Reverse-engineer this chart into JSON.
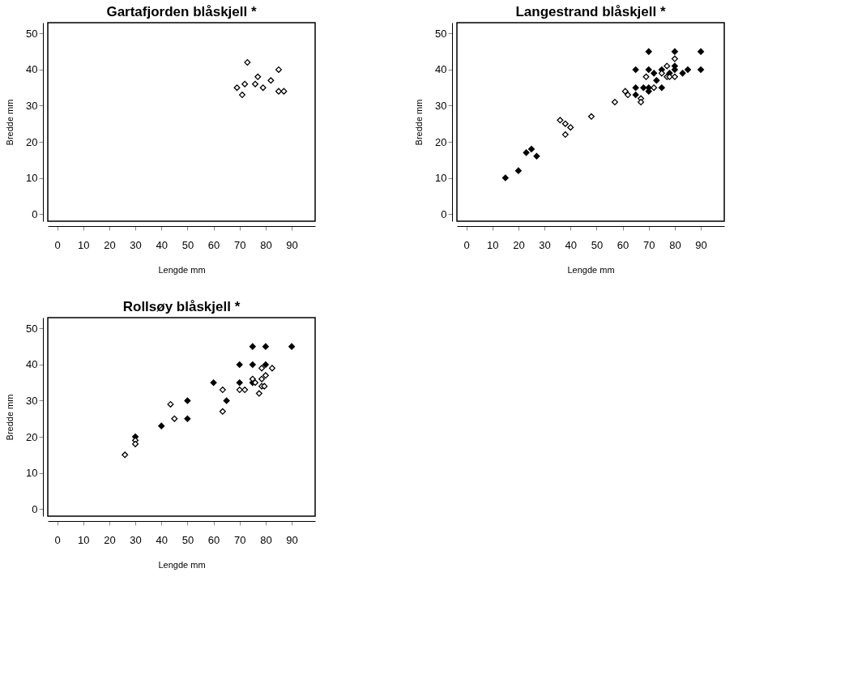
{
  "chart_data": [
    {
      "type": "scatter",
      "title": "Gartafjorden blåskjell *",
      "xlabel": "Lengde mm",
      "ylabel": "Bredde mm",
      "marker": "diamond",
      "grid": false,
      "xlim": [
        -3.6,
        99
      ],
      "ylim": [
        -2,
        53
      ],
      "xticks": [
        0,
        10,
        20,
        30,
        40,
        50,
        60,
        70,
        80,
        90
      ],
      "yticks": [
        0,
        10,
        20,
        30,
        40,
        50
      ],
      "series": [
        {
          "color": "#ffffff",
          "x": [
            73,
            85,
            77,
            82,
            72,
            76,
            69,
            79,
            71,
            85,
            87
          ],
          "values": [
            42,
            40,
            38,
            37,
            36,
            36,
            35,
            35,
            33,
            34,
            34
          ]
        }
      ]
    },
    {
      "type": "scatter",
      "title": "Langestrand blåskjell *",
      "xlabel": "Lengde mm",
      "ylabel": "Bredde mm",
      "marker": "diamond",
      "grid": false,
      "xlim": [
        -3.6,
        99
      ],
      "ylim": [
        -2,
        53
      ],
      "xticks": [
        0,
        10,
        20,
        30,
        40,
        50,
        60,
        70,
        80,
        90
      ],
      "yticks": [
        0,
        10,
        20,
        30,
        40,
        50
      ],
      "series": [
        {
          "color": "#ffffff",
          "x": [
            36,
            38,
            40,
            38,
            48,
            57,
            61,
            62,
            67,
            67,
            69,
            72,
            77,
            80,
            75,
            77,
            78,
            80
          ],
          "values": [
            26,
            25,
            24,
            22,
            27,
            31,
            34,
            33,
            32,
            31,
            38,
            35,
            41,
            43,
            39,
            38,
            38,
            38
          ]
        },
        {
          "color": "#000000",
          "x": [
            15,
            20,
            23,
            25,
            27,
            70,
            80,
            90,
            65,
            70,
            75,
            80,
            90,
            85,
            72,
            80,
            83,
            78,
            73,
            65,
            68,
            70,
            75,
            70,
            65
          ],
          "values": [
            10,
            12,
            17,
            18,
            16,
            45,
            45,
            45,
            40,
            40,
            40,
            40,
            40,
            40,
            39,
            41,
            39,
            39,
            37,
            35,
            35,
            35,
            35,
            34,
            33
          ]
        }
      ]
    },
    {
      "type": "scatter",
      "title": "Rollsøy blåskjell *",
      "xlabel": "Lengde mm",
      "ylabel": "Bredde mm",
      "marker": "diamond",
      "grid": false,
      "xlim": [
        -3.6,
        99
      ],
      "ylim": [
        -2,
        53
      ],
      "xticks": [
        0,
        10,
        20,
        30,
        40,
        50,
        60,
        70,
        80,
        90
      ],
      "yticks": [
        0,
        10,
        20,
        30,
        40,
        50
      ],
      "series": [
        {
          "color": "#ffffff",
          "x": [
            78.5,
            82.5,
            80,
            78.5,
            75,
            76,
            63.5,
            70,
            72,
            78.5,
            79.5,
            77.5,
            63.5,
            43.5,
            45,
            30,
            30,
            26
          ],
          "values": [
            39,
            39,
            37,
            36,
            36,
            35,
            33,
            33,
            33,
            34,
            34,
            32,
            27,
            29,
            25,
            19,
            18,
            15
          ]
        },
        {
          "color": "#000000",
          "x": [
            75,
            80,
            90,
            70,
            75,
            80,
            60,
            70,
            75,
            65,
            50,
            50,
            40,
            30
          ],
          "values": [
            45,
            45,
            45,
            40,
            40,
            40,
            35,
            35,
            35,
            30,
            30,
            25,
            23,
            20
          ]
        }
      ]
    }
  ]
}
